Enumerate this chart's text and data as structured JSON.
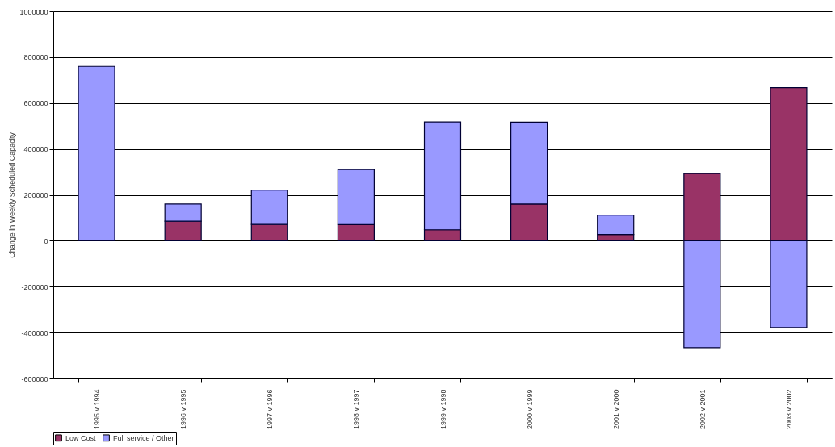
{
  "chart_data": {
    "type": "bar",
    "stacked": true,
    "ylabel": "Change in Weekly Scheduled Capacity",
    "categories": [
      "1995 v 1994",
      "1996 v 1995",
      "1997 v 1996",
      "1998 v 1997",
      "1999 v 1998",
      "2000 v 1999",
      "2001 v 2000",
      "2002 v 2001",
      "2003 v 2002"
    ],
    "series": [
      {
        "name": "Low Cost",
        "color": "#993366",
        "values": [
          0,
          85000,
          71000,
          70000,
          48000,
          160000,
          27000,
          293000,
          667000
        ]
      },
      {
        "name": "Full service / Other",
        "color": "#9999ff",
        "values": [
          760000,
          75000,
          150000,
          240000,
          470000,
          357000,
          85000,
          -466000,
          -378000
        ]
      }
    ],
    "ylim": [
      -600000,
      1000000
    ],
    "yticks": [
      -600000,
      -400000,
      -200000,
      0,
      200000,
      400000,
      600000,
      800000,
      1000000
    ],
    "grid": "y",
    "legend": "bottom"
  }
}
